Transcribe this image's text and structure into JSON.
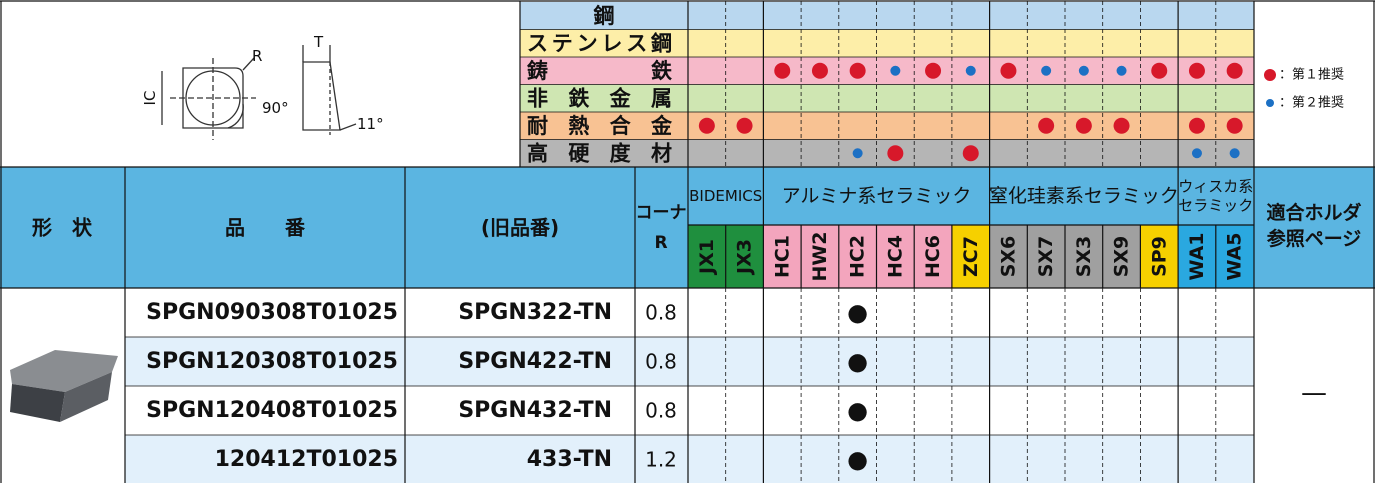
{
  "diagram": {
    "ic": "IC",
    "r": "R",
    "angle": "90°",
    "t": "T",
    "clearance": "11°"
  },
  "materials": [
    {
      "name": "鋼",
      "color": "#b9d7ef",
      "ranks": [
        null,
        null,
        null,
        null,
        null,
        null,
        null,
        null,
        null,
        null,
        null,
        null,
        null,
        null,
        null
      ]
    },
    {
      "name": "ステンレス鋼",
      "color": "#fdeea8",
      "ranks": [
        null,
        null,
        null,
        null,
        null,
        null,
        null,
        null,
        null,
        null,
        null,
        null,
        null,
        null,
        null
      ]
    },
    {
      "name": "鋳鉄",
      "color": "#f6b9c9",
      "ranks": [
        null,
        null,
        1,
        1,
        1,
        2,
        1,
        2,
        1,
        2,
        2,
        2,
        1,
        1,
        1
      ]
    },
    {
      "name": "非鉄金属",
      "color": "#cfe6b2",
      "ranks": [
        null,
        null,
        null,
        null,
        null,
        null,
        null,
        null,
        null,
        null,
        null,
        null,
        null,
        null,
        null
      ]
    },
    {
      "name": "耐熱合金",
      "color": "#f8c293",
      "ranks": [
        1,
        1,
        null,
        null,
        null,
        null,
        null,
        null,
        null,
        1,
        1,
        1,
        null,
        1,
        1
      ]
    },
    {
      "name": "高硬度材",
      "color": "#b5b5b5",
      "ranks": [
        null,
        null,
        null,
        null,
        2,
        1,
        null,
        1,
        null,
        null,
        null,
        null,
        null,
        2,
        2
      ]
    }
  ],
  "legend": [
    {
      "rank": 1,
      "color": "#d7182a",
      "label": "：第１推奨"
    },
    {
      "rank": 2,
      "color": "#1c70c4",
      "label": "：第２推奨"
    }
  ],
  "header": {
    "color": "#5bb5e1",
    "shape": "形　状",
    "code": "品　　番",
    "old": "(旧品番)",
    "corner": [
      "コーナ",
      "R"
    ],
    "holder": [
      "適合ホルダ",
      "参照ページ"
    ]
  },
  "groups": [
    {
      "label": [
        "BIDEMICS"
      ],
      "grades": [
        {
          "code": "JX1",
          "color": "#1f8f3e",
          "text": "#ffffff"
        },
        {
          "code": "JX3",
          "color": "#1f8f3e",
          "text": "#ffffff"
        }
      ]
    },
    {
      "label": [
        "アルミナ系セラミック"
      ],
      "grades": [
        {
          "code": "HC1",
          "color": "#f3a5bd",
          "text": "#111111"
        },
        {
          "code": "HW2",
          "color": "#f3a5bd",
          "text": "#111111"
        },
        {
          "code": "HC2",
          "color": "#f3a5bd",
          "text": "#111111"
        },
        {
          "code": "HC4",
          "color": "#f3a5bd",
          "text": "#111111"
        },
        {
          "code": "HC6",
          "color": "#f3a5bd",
          "text": "#111111"
        },
        {
          "code": "ZC7",
          "color": "#f6d000",
          "text": "#111111"
        }
      ]
    },
    {
      "label": [
        "窒化珪素系セラミック"
      ],
      "grades": [
        {
          "code": "SX6",
          "color": "#a0a0a0",
          "text": "#111111"
        },
        {
          "code": "SX7",
          "color": "#a0a0a0",
          "text": "#111111"
        },
        {
          "code": "SX3",
          "color": "#a0a0a0",
          "text": "#111111"
        },
        {
          "code": "SX9",
          "color": "#a0a0a0",
          "text": "#111111"
        },
        {
          "code": "SP9",
          "color": "#f6d000",
          "text": "#111111"
        }
      ]
    },
    {
      "label": [
        "ウィスカ系",
        "セラミック"
      ],
      "grades": [
        {
          "code": "WA1",
          "color": "#2aa8e0",
          "text": "#ffffff"
        },
        {
          "code": "WA5",
          "color": "#2aa8e0",
          "text": "#ffffff"
        }
      ]
    }
  ],
  "body": {
    "stripe": "#e2f0fb",
    "holder": "—",
    "rows": [
      {
        "code": "SPGN090308T01025",
        "old": "SPGN322-TN",
        "r": 0.8,
        "cells": [
          null,
          null,
          null,
          null,
          "●",
          null,
          null,
          null,
          null,
          null,
          null,
          null,
          null,
          null,
          null
        ]
      },
      {
        "code": "SPGN120308T01025",
        "old": "SPGN422-TN",
        "r": 0.8,
        "cells": [
          null,
          null,
          null,
          null,
          "●",
          null,
          null,
          null,
          null,
          null,
          null,
          null,
          null,
          null,
          null
        ]
      },
      {
        "code": "SPGN120408T01025",
        "old": "SPGN432-TN",
        "r": 0.8,
        "cells": [
          null,
          null,
          null,
          null,
          "●",
          null,
          null,
          null,
          null,
          null,
          null,
          null,
          null,
          null,
          null
        ]
      },
      {
        "code": "120412T01025",
        "old": "433-TN",
        "r": 1.2,
        "cells": [
          null,
          null,
          null,
          null,
          "●",
          null,
          null,
          null,
          null,
          null,
          null,
          null,
          null,
          null,
          null
        ]
      }
    ]
  }
}
